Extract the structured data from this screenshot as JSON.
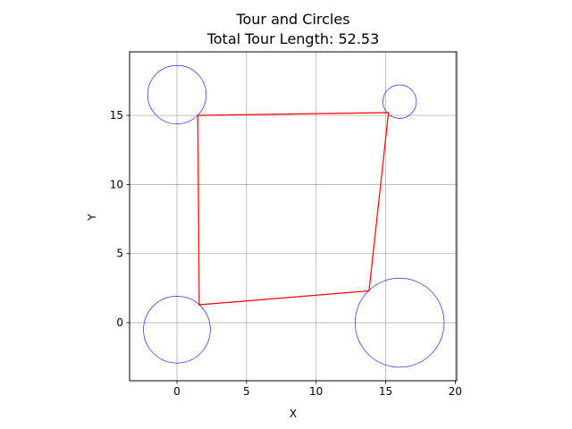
{
  "chart_data": {
    "type": "line",
    "title": "Tour and Circles",
    "subtitle": "Total Tour Length: 52.53",
    "xlabel": "X",
    "ylabel": "Y",
    "xlim": [
      -3.4,
      20.1
    ],
    "ylim": [
      -4.2,
      19.6
    ],
    "xticks": [
      0,
      5,
      10,
      15,
      20
    ],
    "yticks": [
      0,
      5,
      10,
      15
    ],
    "grid": true,
    "circles": [
      {
        "cx": 0.0,
        "cy": 16.5,
        "r": 2.1
      },
      {
        "cx": 16.0,
        "cy": 16.0,
        "r": 1.2
      },
      {
        "cx": 0.0,
        "cy": -0.5,
        "r": 2.4
      },
      {
        "cx": 16.0,
        "cy": 0.0,
        "r": 3.2
      }
    ],
    "tour": [
      {
        "x": 1.5,
        "y": 15.0
      },
      {
        "x": 15.2,
        "y": 15.2
      },
      {
        "x": 13.8,
        "y": 2.3
      },
      {
        "x": 1.6,
        "y": 1.3
      },
      {
        "x": 1.5,
        "y": 15.0
      }
    ],
    "colors": {
      "circle": "#0000ff",
      "tour": "#ff0000",
      "grid": "#b0b0b0"
    }
  }
}
